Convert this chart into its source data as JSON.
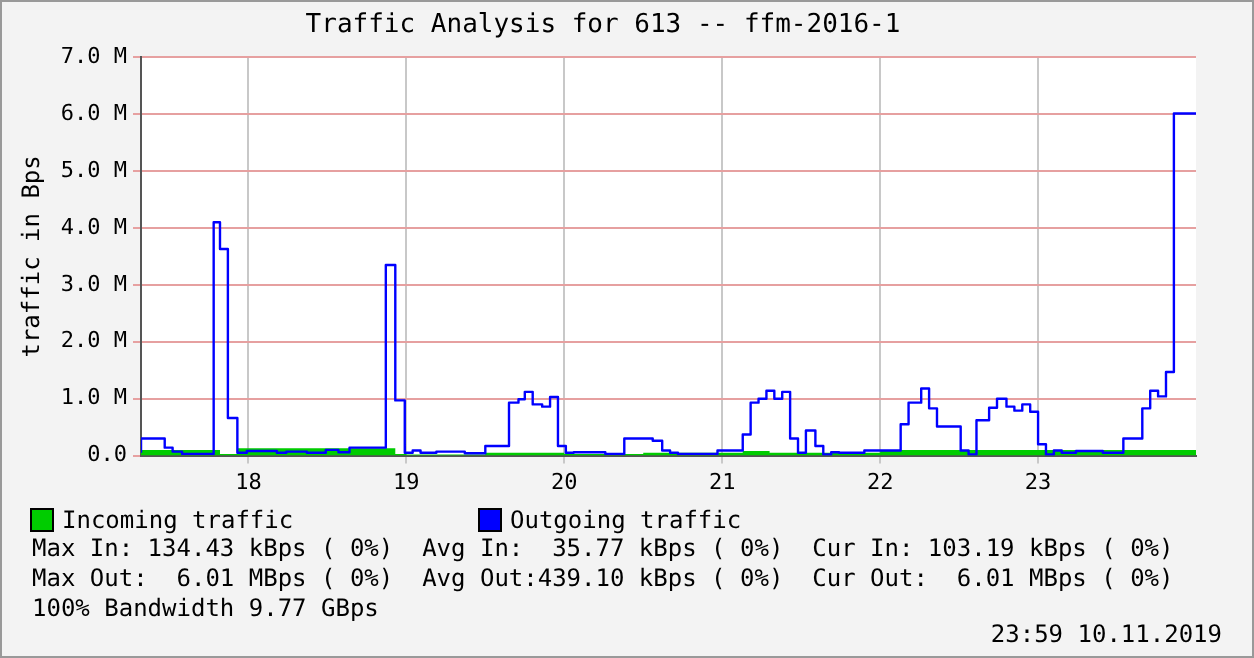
{
  "chart_data": {
    "type": "step",
    "title": "Traffic Analysis for 613 -- ffm-2016-1",
    "ylabel": "traffic in Bps",
    "xlim": [
      17.32,
      24.0
    ],
    "xticks": [
      18,
      19,
      20,
      21,
      22,
      23
    ],
    "ylim": [
      0,
      7
    ],
    "yticks": [
      {
        "value": 0,
        "label": "0.0"
      },
      {
        "value": 1,
        "label": "1.0 M"
      },
      {
        "value": 2,
        "label": "2.0 M"
      },
      {
        "value": 3,
        "label": "3.0 M"
      },
      {
        "value": 4,
        "label": "4.0 M"
      },
      {
        "value": 5,
        "label": "5.0 M"
      },
      {
        "value": 6,
        "label": "6.0 M"
      },
      {
        "value": 7,
        "label": "7.0 M"
      }
    ],
    "grid": true,
    "legend": "bottom",
    "line_style": "solid",
    "marker": "none",
    "series": [
      {
        "name": "Incoming traffic",
        "color": "#00cc00",
        "type": "area",
        "x": [
          17.32,
          17.82,
          17.93,
          18.93,
          19.0,
          19.5,
          20.0,
          20.5,
          21.13,
          21.3,
          21.4,
          22.0,
          23.9,
          24.0
        ],
        "values": [
          0.03,
          0.1,
          0.03,
          0.13,
          0.03,
          0.02,
          0.05,
          0.03,
          0.05,
          0.08,
          0.05,
          0.05,
          0.1,
          0.1
        ]
      },
      {
        "name": "Outgoing traffic",
        "color": "#0000ff",
        "x": [
          17.32,
          17.47,
          17.52,
          17.58,
          17.78,
          17.82,
          17.87,
          17.93,
          17.99,
          18.18,
          18.24,
          18.37,
          18.49,
          18.57,
          18.64,
          18.87,
          18.93,
          18.99,
          19.04,
          19.09,
          19.19,
          19.37,
          19.5,
          19.65,
          19.71,
          19.75,
          19.8,
          19.86,
          19.91,
          19.96,
          20.01,
          20.06,
          20.26,
          20.38,
          20.56,
          20.62,
          20.67,
          20.72,
          20.97,
          21.13,
          21.18,
          21.23,
          21.28,
          21.33,
          21.38,
          21.43,
          21.48,
          21.53,
          21.59,
          21.64,
          21.69,
          21.74,
          21.9,
          22.13,
          22.18,
          22.26,
          22.31,
          22.36,
          22.51,
          22.56,
          22.61,
          22.69,
          22.74,
          22.8,
          22.85,
          22.9,
          22.95,
          23.0,
          23.05,
          23.1,
          23.15,
          23.24,
          23.41,
          23.54,
          23.66,
          23.71,
          23.76,
          23.81,
          23.86,
          23.91,
          24.0
        ],
        "values": [
          0.05,
          0.3,
          0.14,
          0.07,
          0.03,
          4.1,
          3.63,
          0.66,
          0.05,
          0.08,
          0.05,
          0.07,
          0.05,
          0.1,
          0.06,
          0.14,
          3.35,
          0.97,
          0.05,
          0.09,
          0.05,
          0.07,
          0.04,
          0.17,
          0.93,
          0.99,
          1.12,
          0.9,
          0.86,
          1.03,
          0.17,
          0.05,
          0.06,
          0.03,
          0.3,
          0.26,
          0.09,
          0.05,
          0.03,
          0.09,
          0.37,
          0.93,
          1.0,
          1.14,
          1.0,
          1.12,
          0.3,
          0.05,
          0.44,
          0.17,
          0.02,
          0.06,
          0.05,
          0.09,
          0.55,
          0.93,
          1.18,
          0.83,
          0.51,
          0.09,
          0.02,
          0.62,
          0.84,
          1.0,
          0.86,
          0.79,
          0.9,
          0.77,
          0.2,
          0.02,
          0.09,
          0.05,
          0.08,
          0.05,
          0.3,
          0.83,
          1.14,
          1.04,
          1.47,
          6.01,
          6.01
        ]
      }
    ],
    "annotations": [
      "Max In: 134.43 kBps ( 0%)  Avg In:  35.77 kBps ( 0%)  Cur In: 103.19 kBps ( 0%)",
      "Max Out:  6.01 MBps ( 0%)  Avg Out:439.10 kBps ( 0%)  Cur Out:  6.01 MBps ( 0%)",
      "100% Bandwidth 9.77 GBps",
      "23:59 10.11.2019"
    ]
  }
}
